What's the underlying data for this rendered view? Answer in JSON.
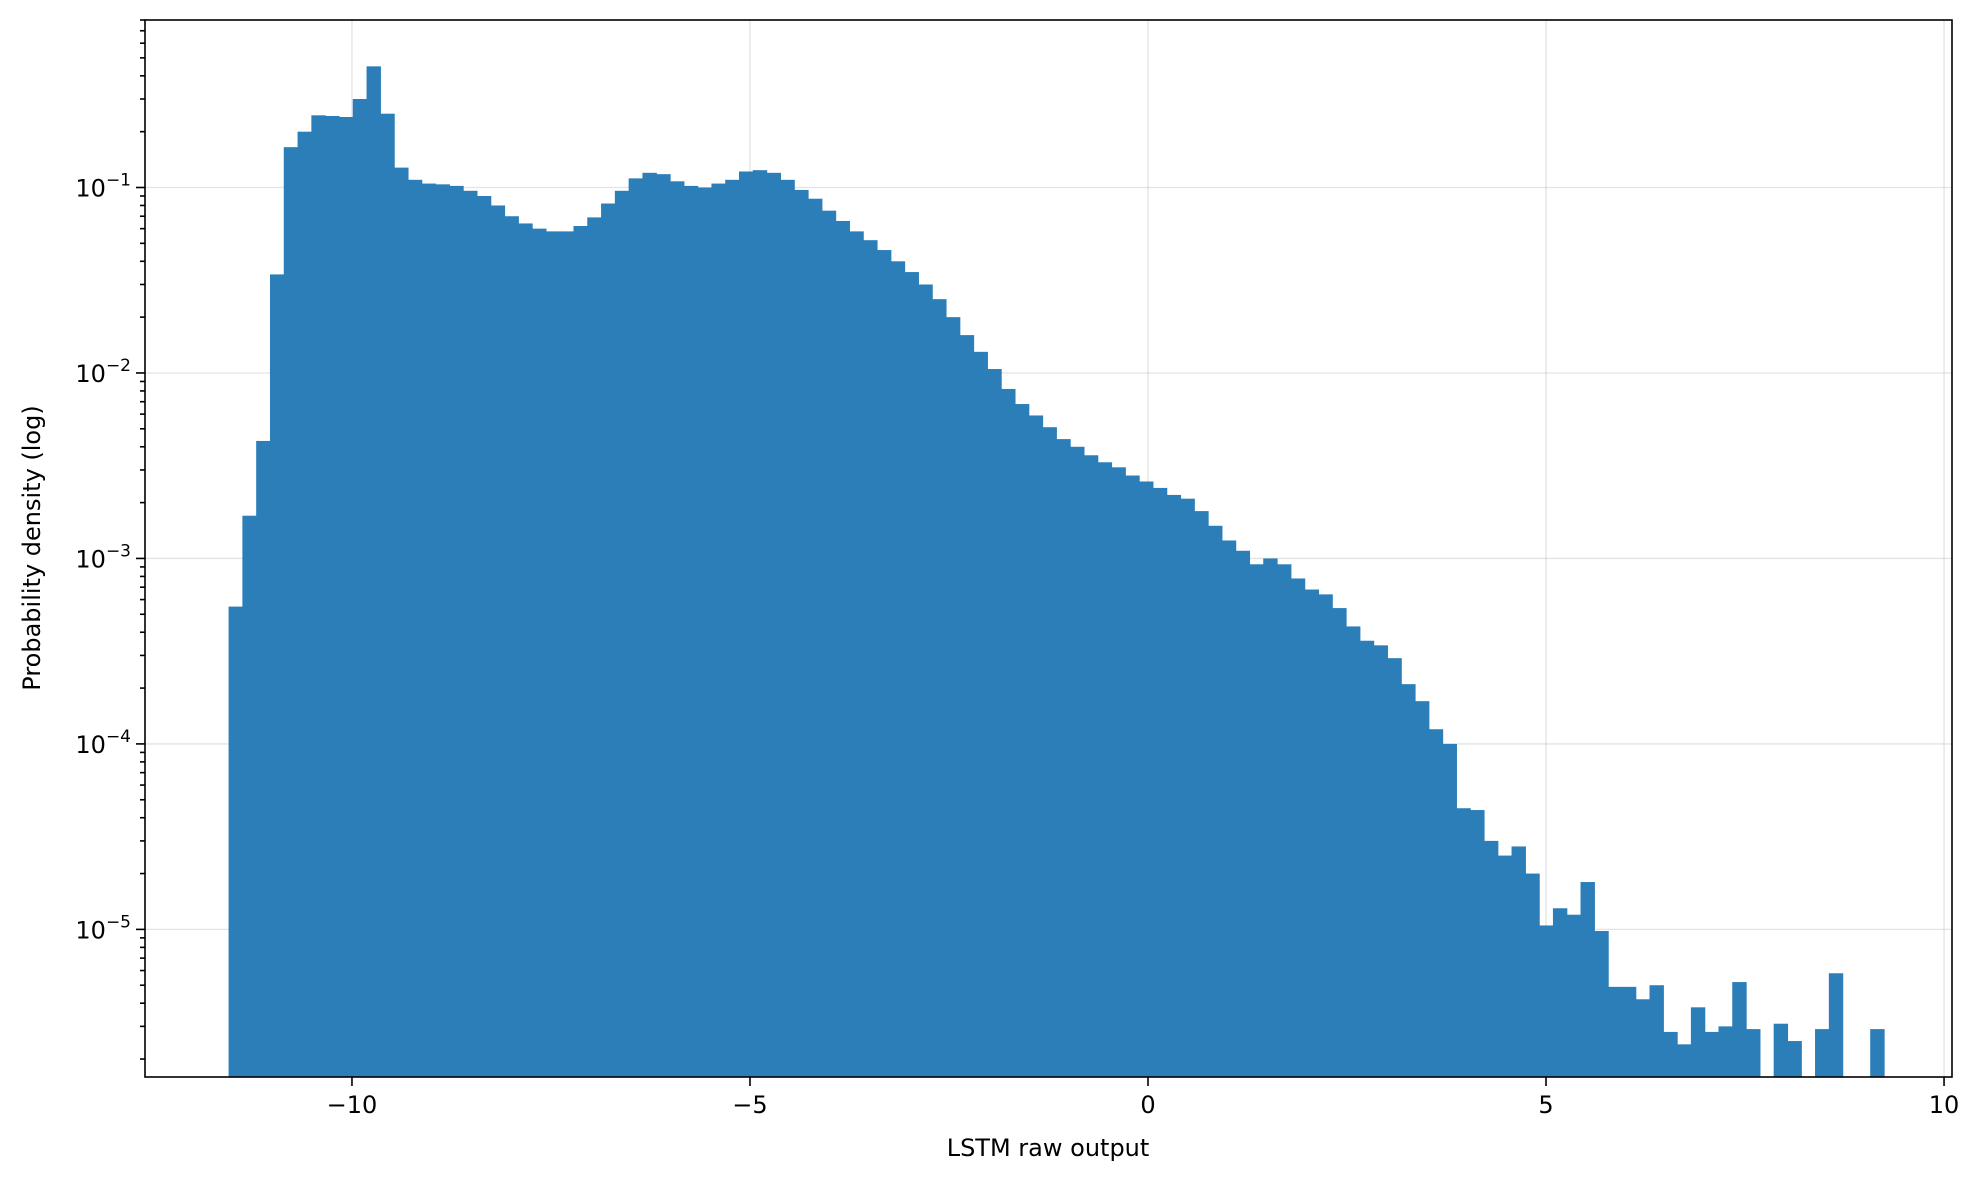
{
  "chart_data": {
    "type": "bar",
    "subtype": "histogram",
    "xlabel": "LSTM raw output",
    "ylabel": "Probability density (log)",
    "xlim": [
      -12.6,
      10.1
    ],
    "ylim": [
      1.6e-06,
      0.8
    ],
    "y_scale": "log",
    "grid": true,
    "bar_color": "#2c7eb8",
    "x_ticks": [
      {
        "value": -10,
        "label": "−10"
      },
      {
        "value": -5,
        "label": "−5"
      },
      {
        "value": 0,
        "label": "0"
      },
      {
        "value": 5,
        "label": "5"
      },
      {
        "value": 10,
        "label": "10"
      }
    ],
    "y_ticks": [
      {
        "value": 0.1,
        "base": "10",
        "exp": "−1"
      },
      {
        "value": 0.01,
        "base": "10",
        "exp": "−2"
      },
      {
        "value": 0.001,
        "base": "10",
        "exp": "−3"
      },
      {
        "value": 0.0001,
        "base": "10",
        "exp": "−4"
      },
      {
        "value": 1e-05,
        "base": "10",
        "exp": "−5"
      }
    ],
    "bin_start": -11.55,
    "bin_width": 0.1733,
    "values": [
      0.00055,
      0.0017,
      0.0043,
      0.034,
      0.165,
      0.2,
      0.245,
      0.243,
      0.24,
      0.3,
      0.45,
      0.25,
      0.128,
      0.11,
      0.105,
      0.104,
      0.102,
      0.096,
      0.09,
      0.08,
      0.07,
      0.064,
      0.06,
      0.058,
      0.058,
      0.062,
      0.069,
      0.082,
      0.096,
      0.112,
      0.12,
      0.118,
      0.108,
      0.102,
      0.1,
      0.105,
      0.11,
      0.122,
      0.124,
      0.12,
      0.11,
      0.097,
      0.087,
      0.075,
      0.066,
      0.058,
      0.052,
      0.046,
      0.04,
      0.035,
      0.03,
      0.025,
      0.02,
      0.016,
      0.013,
      0.0105,
      0.0082,
      0.0068,
      0.0059,
      0.0051,
      0.0044,
      0.004,
      0.0036,
      0.0033,
      0.0031,
      0.0028,
      0.0026,
      0.0024,
      0.0022,
      0.0021,
      0.0018,
      0.0015,
      0.00125,
      0.0011,
      0.00093,
      0.001,
      0.00093,
      0.00078,
      0.00068,
      0.00064,
      0.00054,
      0.00043,
      0.00036,
      0.00034,
      0.00029,
      0.00021,
      0.00017,
      0.00012,
      0.0001,
      4.5e-05,
      4.4e-05,
      3e-05,
      2.5e-05,
      2.8e-05,
      2e-05,
      1.05e-05,
      1.3e-05,
      1.2e-05,
      1.8e-05,
      9.8e-06,
      4.9e-06,
      4.9e-06,
      4.2e-06,
      5e-06,
      2.8e-06,
      2.4e-06,
      3.8e-06,
      2.8e-06,
      3e-06,
      5.2e-06,
      2.9e-06,
      0,
      3.1e-06,
      2.5e-06,
      0,
      2.9e-06,
      5.8e-06,
      0,
      0,
      2.9e-06,
      0
    ]
  }
}
